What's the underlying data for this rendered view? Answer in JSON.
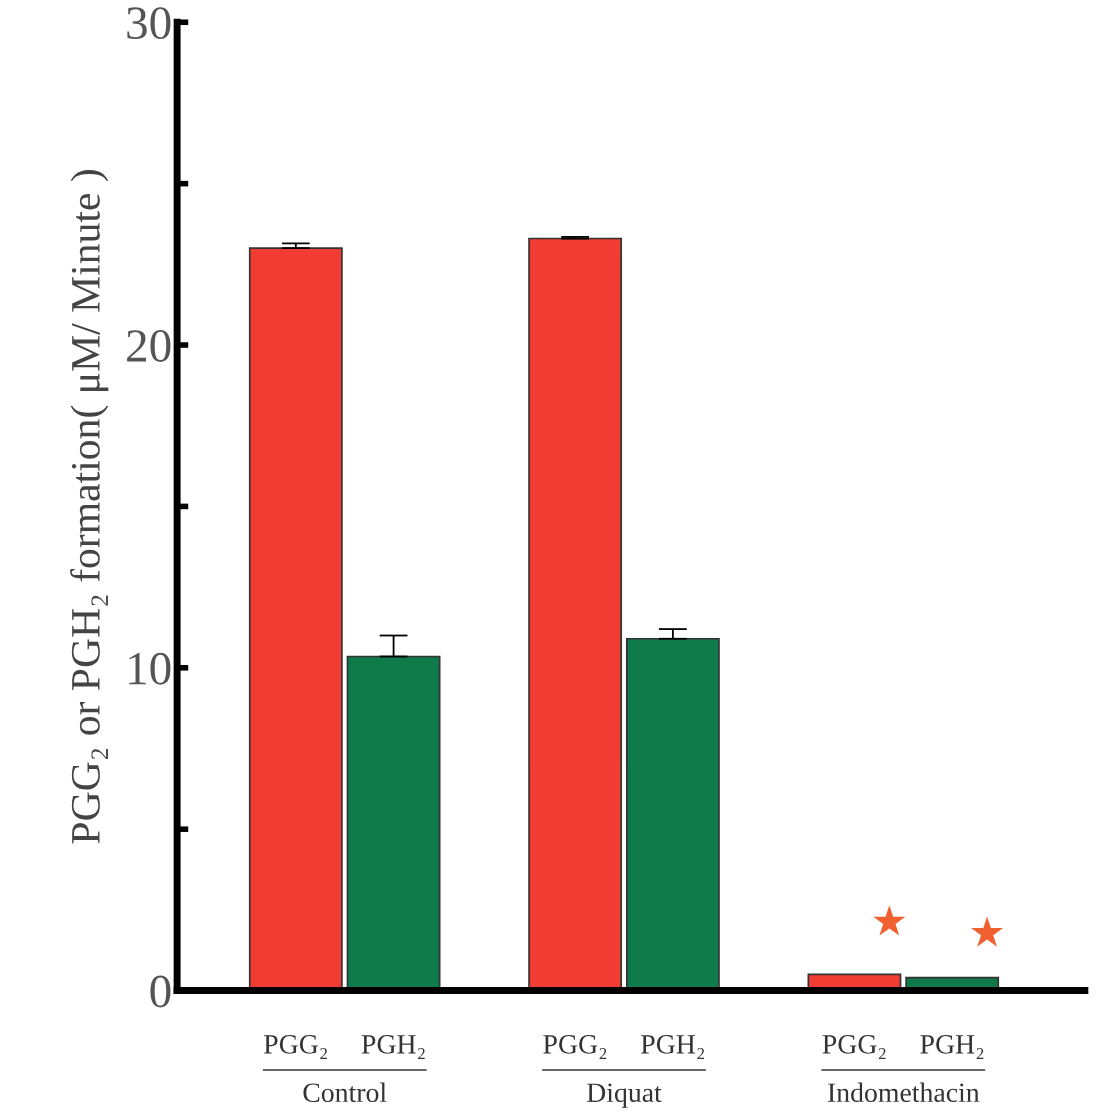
{
  "chart_data": {
    "type": "bar",
    "ylabel": "PGG₂ or PGH₂ formation( μM/ Minute )",
    "categories": [
      "Control",
      "Diquat",
      "Indomethacin"
    ],
    "series": [
      {
        "name": "PGG₂",
        "color": "#f03c32",
        "values": [
          23.0,
          23.3,
          0.5
        ],
        "errors": [
          0.15,
          0.05,
          null
        ]
      },
      {
        "name": "PGH₂",
        "color": "#0f7a4a",
        "values": [
          10.35,
          10.9,
          0.4
        ],
        "errors": [
          0.65,
          0.3,
          null
        ]
      }
    ],
    "ylim": [
      0,
      30
    ],
    "yticks": [
      0,
      {
        "value": 5,
        "label": null
      },
      10,
      {
        "value": 15,
        "label": null
      },
      20,
      {
        "value": 25,
        "label": null
      },
      30
    ],
    "annotations": [
      "★",
      "★"
    ],
    "grid": false,
    "legend": false
  }
}
